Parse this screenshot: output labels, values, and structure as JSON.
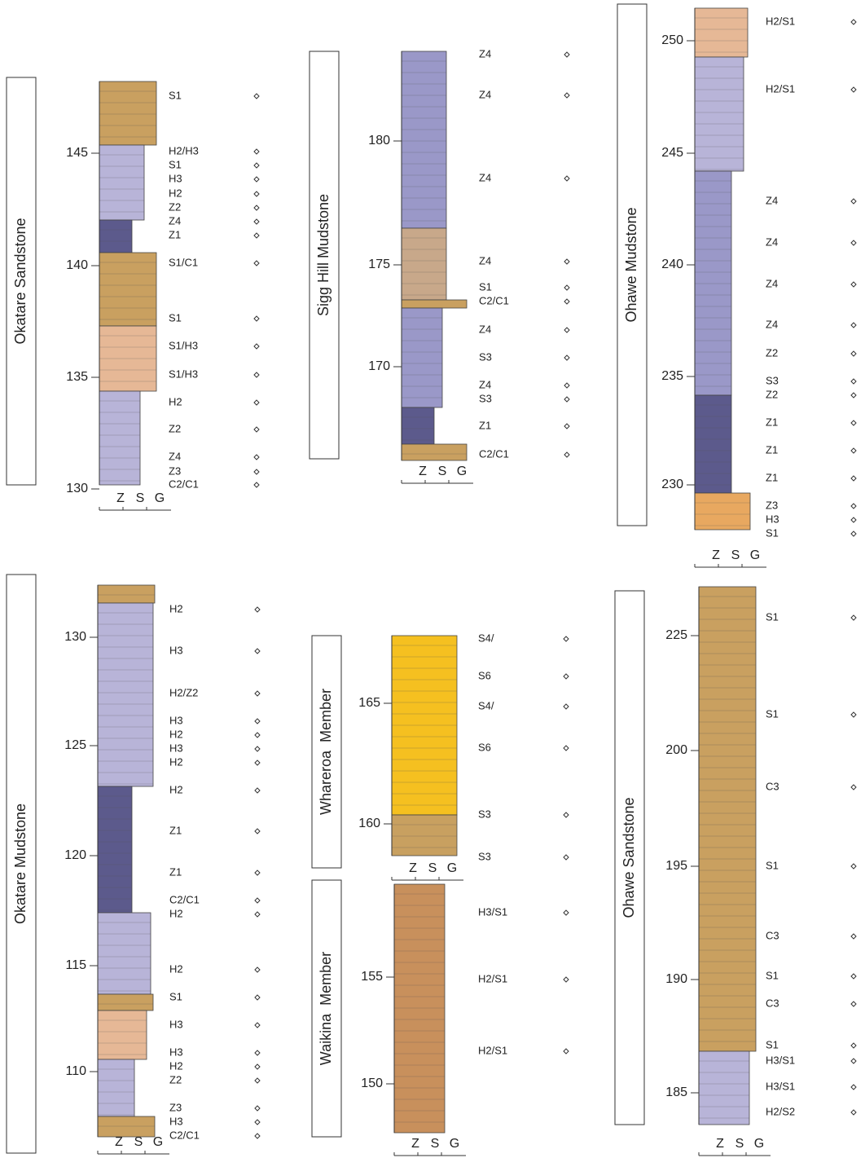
{
  "columns": [
    {
      "name": "Okatare Sandstone",
      "depth_ticks": [
        145,
        140,
        135,
        130
      ],
      "facies": [
        "S1",
        "H2/H3",
        "S1",
        "H3",
        "H2",
        "Z2",
        "Z4",
        "Z1",
        "S1/C1",
        "S1",
        "S1/H3",
        "S1/H3",
        "H2",
        "Z2",
        "Z4",
        "Z3",
        "C2/C1"
      ]
    },
    {
      "name": "Sigg Hill Mudstone",
      "depth_ticks": [
        180,
        175,
        170
      ],
      "facies": [
        "Z4",
        "Z4",
        "Z4",
        "Z4",
        "S1",
        "C2/C1",
        "Z4",
        "S3",
        "Z4",
        "S3",
        "Z1",
        "C2/C1"
      ]
    },
    {
      "name": "Ohawe Mudstone",
      "depth_ticks": [
        250,
        245,
        240,
        235,
        230
      ],
      "facies": [
        "H2/S1",
        "H2/S1",
        "Z4",
        "Z4",
        "Z4",
        "Z4",
        "Z2",
        "S3",
        "Z2",
        "Z1",
        "Z1",
        "Z1",
        "Z3",
        "H3",
        "S1"
      ]
    },
    {
      "name": "Okatare Mudstone",
      "depth_ticks": [
        130,
        125,
        120,
        115,
        110
      ],
      "facies": [
        "H2",
        "H3",
        "H2/Z2",
        "H3",
        "H2",
        "H3",
        "H2",
        "H2",
        "Z1",
        "Z1",
        "C2/C1",
        "H2",
        "H2",
        "S1",
        "H3",
        "H3",
        "H2",
        "Z2",
        "Z3",
        "H3",
        "C2/C1"
      ]
    },
    {
      "name": "Whareroa  Member",
      "depth_ticks": [
        165,
        160
      ],
      "facies": [
        "S4/",
        "S6",
        "S4/",
        "S6",
        "S3",
        "S3"
      ]
    },
    {
      "name": "Waikina  Member",
      "depth_ticks": [
        155,
        150
      ],
      "facies": [
        "H3/S1",
        "H2/S1",
        "H2/S1"
      ]
    },
    {
      "name": "Ohawe Sandstone",
      "depth_ticks": [
        225,
        200,
        195,
        190,
        185
      ],
      "facies": [
        "S1",
        "S1",
        "C3",
        "S1",
        "C3",
        "S1",
        "C3",
        "S1",
        "H3/S1",
        "H3/S1",
        "H2/S2"
      ]
    }
  ],
  "grain_axis": [
    "Z",
    "S",
    "G"
  ]
}
